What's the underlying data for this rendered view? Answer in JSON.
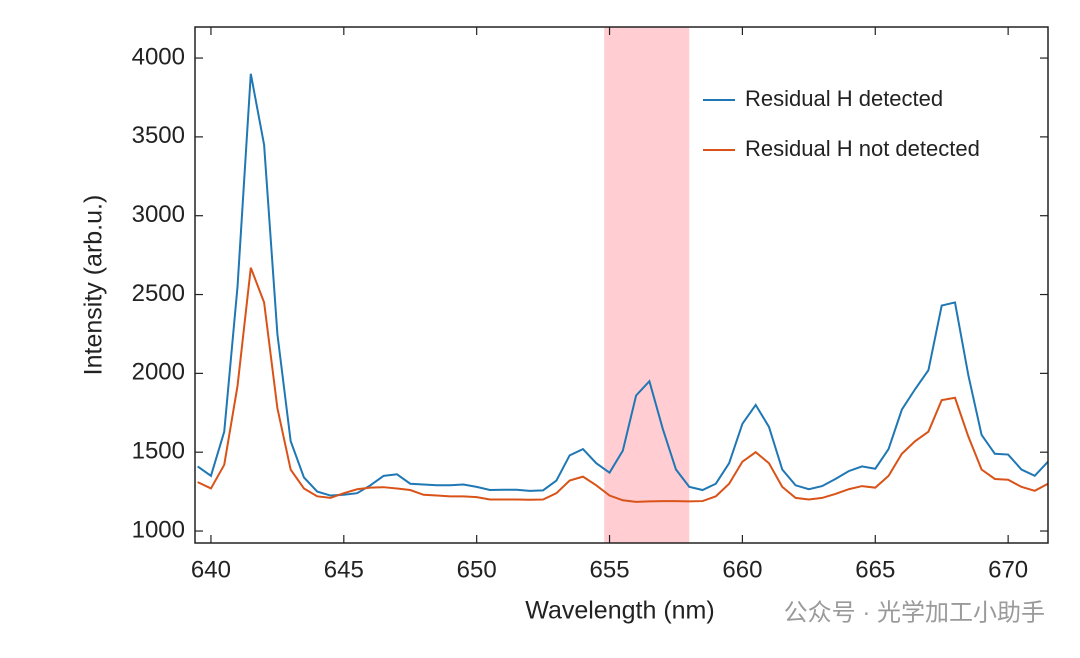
{
  "chart_data": {
    "type": "line",
    "xlabel": "Wavelength (nm)",
    "ylabel": "Intensity (arb.u.)",
    "x": [
      639.5,
      640,
      640.5,
      641,
      641.5,
      642,
      642.5,
      643,
      643.5,
      644,
      644.5,
      645,
      645.5,
      646,
      646.5,
      647,
      647.5,
      648,
      648.5,
      649,
      649.5,
      650,
      650.5,
      651,
      651.5,
      652,
      652.5,
      653,
      653.5,
      654,
      654.5,
      655,
      655.5,
      656,
      656.5,
      657,
      657.5,
      658,
      658.5,
      659,
      659.5,
      660,
      660.5,
      661,
      661.5,
      662,
      662.5,
      663,
      663.5,
      664,
      664.5,
      665,
      665.5,
      666,
      666.5,
      667,
      667.5,
      668,
      668.5,
      669,
      669.5,
      670,
      670.5,
      671,
      671.5
    ],
    "series": [
      {
        "name": "Residual H detected",
        "color": "#1f77b4",
        "values": [
          1410,
          1350,
          1630,
          2550,
          3900,
          3450,
          2250,
          1570,
          1340,
          1250,
          1225,
          1230,
          1240,
          1290,
          1350,
          1360,
          1300,
          1295,
          1290,
          1290,
          1295,
          1280,
          1260,
          1262,
          1262,
          1255,
          1258,
          1320,
          1480,
          1520,
          1430,
          1370,
          1510,
          1860,
          1950,
          1650,
          1390,
          1280,
          1260,
          1300,
          1430,
          1680,
          1800,
          1660,
          1390,
          1290,
          1265,
          1285,
          1330,
          1380,
          1410,
          1395,
          1520,
          1770,
          1900,
          2020,
          2430,
          2450,
          1990,
          1610,
          1490,
          1485,
          1390,
          1350,
          1440
        ]
      },
      {
        "name": "Residual H not detected",
        "color": "#d95319",
        "values": [
          1310,
          1270,
          1420,
          1920,
          2670,
          2450,
          1780,
          1390,
          1270,
          1220,
          1210,
          1240,
          1265,
          1275,
          1278,
          1270,
          1260,
          1230,
          1225,
          1220,
          1220,
          1215,
          1200,
          1200,
          1200,
          1198,
          1200,
          1240,
          1320,
          1345,
          1290,
          1225,
          1195,
          1185,
          1188,
          1190,
          1190,
          1188,
          1190,
          1220,
          1300,
          1440,
          1500,
          1430,
          1280,
          1210,
          1200,
          1210,
          1235,
          1265,
          1285,
          1275,
          1350,
          1490,
          1570,
          1630,
          1830,
          1845,
          1600,
          1390,
          1330,
          1325,
          1280,
          1255,
          1300
        ]
      }
    ],
    "highlight_band": {
      "range": [
        654.8,
        658.0
      ],
      "color": "#ffcdd2"
    },
    "xlim": [
      639.4,
      671.5
    ],
    "ylim": [
      924,
      4197
    ],
    "xticks": [
      640,
      645,
      650,
      655,
      660,
      665,
      670
    ],
    "yticks": [
      1000,
      1500,
      2000,
      2500,
      3000,
      3500,
      4000
    ],
    "legend": "upper right",
    "watermark": "公众号 · 光学加工小助手"
  }
}
